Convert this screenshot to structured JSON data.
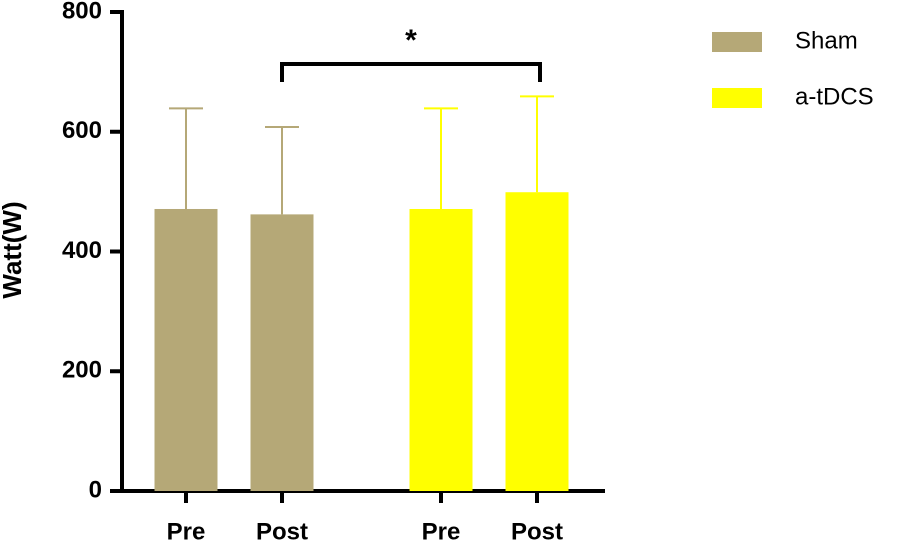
{
  "chart_data": {
    "type": "bar",
    "ylabel": "Watt(W)",
    "categories": [
      "Pre",
      "Post"
    ],
    "series": [
      {
        "name": "Sham",
        "color": "#b5a877",
        "values": [
          471,
          462
        ],
        "errors": [
          168,
          146
        ]
      },
      {
        "name": "a-tDCS",
        "color": "#ffff00",
        "values": [
          471,
          499
        ],
        "errors": [
          168,
          160
        ]
      }
    ],
    "annotation": "*",
    "ylim": [
      0,
      800
    ],
    "yticks": [
      0,
      200,
      400,
      600,
      800
    ],
    "legend": "right"
  }
}
